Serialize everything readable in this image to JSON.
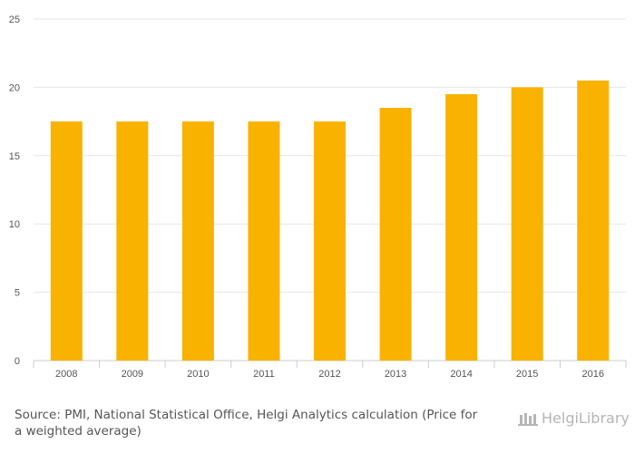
{
  "chart_data": {
    "type": "bar",
    "categories": [
      "2008",
      "2009",
      "2010",
      "2011",
      "2012",
      "2013",
      "2014",
      "2015",
      "2016"
    ],
    "values": [
      17.5,
      17.5,
      17.5,
      17.5,
      17.5,
      18.5,
      19.5,
      20.0,
      20.5
    ],
    "ylim": [
      0,
      25
    ],
    "yticks": [
      0,
      5,
      10,
      15,
      20,
      25
    ],
    "grid": true,
    "bar_color": "#F9B200",
    "title": "",
    "xlabel": "",
    "ylabel": ""
  },
  "footer": {
    "source": "Source: PMI, National Statistical Office, Helgi Analytics calculation (Price for a weighted average)",
    "brand": "HelgiLibrary"
  }
}
